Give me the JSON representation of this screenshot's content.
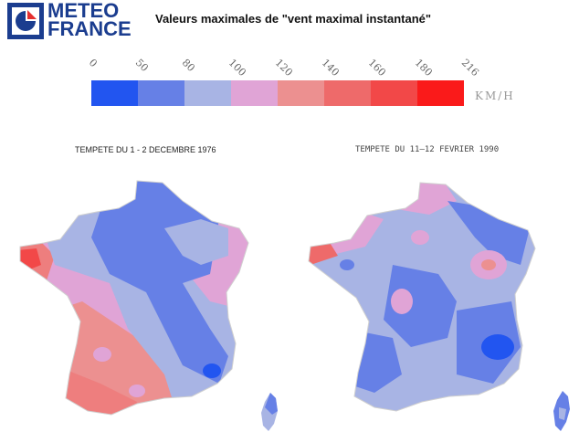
{
  "logo": {
    "line1": "METEO",
    "line2": "FRANCE",
    "icon": "meteo-france-logo-icon"
  },
  "title": "Valeurs maximales de \"vent maximal instantané\"",
  "legend": {
    "ticks": [
      "0",
      "50",
      "80",
      "100",
      "120",
      "140",
      "160",
      "180",
      "216"
    ],
    "colors": [
      "#2255f0",
      "#6680e6",
      "#a8b4e4",
      "#e0a4d6",
      "#ec9090",
      "#ee6a6a",
      "#f24848",
      "#fa1a1a"
    ],
    "unit": "KM/H"
  },
  "maps": [
    {
      "title": "TEMPETE DU 1 - 2 DECEMBRE 1976"
    },
    {
      "title": "TEMPETE DU 11–12 FEVRIER 1990"
    }
  ]
}
